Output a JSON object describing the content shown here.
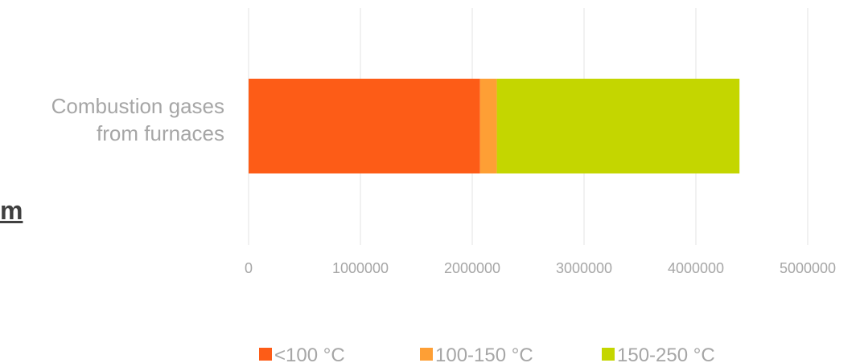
{
  "fragment_text": "m",
  "chart_data": {
    "type": "bar",
    "orientation": "horizontal",
    "stacked": true,
    "title": "",
    "xlabel": "",
    "ylabel": "",
    "categories": [
      "Combustion gases from furnaces"
    ],
    "category_lines": [
      "Combustion gases",
      "from furnaces"
    ],
    "series": [
      {
        "name": "<100 °C",
        "values": [
          2070000
        ],
        "color": "#fd5c17"
      },
      {
        "name": "100-150 °C",
        "values": [
          150000
        ],
        "color": "#fe9f35"
      },
      {
        "name": "150-250 °C",
        "values": [
          2170000
        ],
        "color": "#c4d600"
      }
    ],
    "xlim": [
      0,
      5000000
    ],
    "xticks": [
      "0",
      "1000000",
      "2000000",
      "3000000",
      "4000000",
      "5000000"
    ],
    "grid": true,
    "legend_position": "bottom"
  }
}
